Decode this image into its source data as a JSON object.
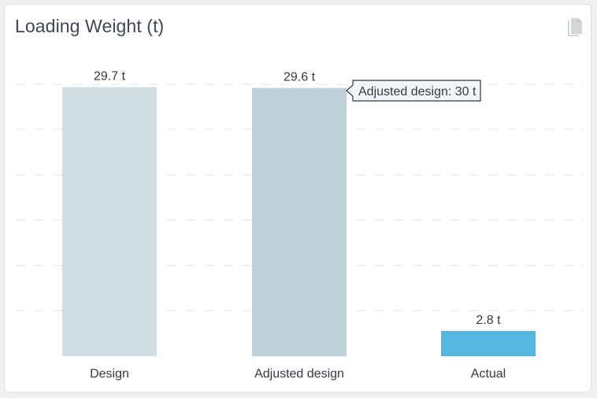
{
  "card": {
    "title": "Loading Weight (t)",
    "copy_icon": "copy-icon"
  },
  "colors": {
    "design": "#d1dde4",
    "adjusted_design": "#bfd0d8",
    "actual": "#56b8e0",
    "gridline": "#dde3e7",
    "text": "#333a40",
    "tooltip_border": "#333a40",
    "tooltip_bg": "#f3f6f8"
  },
  "tooltip": {
    "text": "Adjusted design: 30 t"
  },
  "chart_data": {
    "type": "bar",
    "categories": [
      "Design",
      "Adjusted design",
      "Actual"
    ],
    "values": [
      29.7,
      29.6,
      2.8
    ],
    "value_labels": [
      "29.7 t",
      "29.6 t",
      "2.8 t"
    ],
    "ylim": [
      0,
      30
    ],
    "grid": true,
    "xlabel": "",
    "ylabel": ""
  }
}
